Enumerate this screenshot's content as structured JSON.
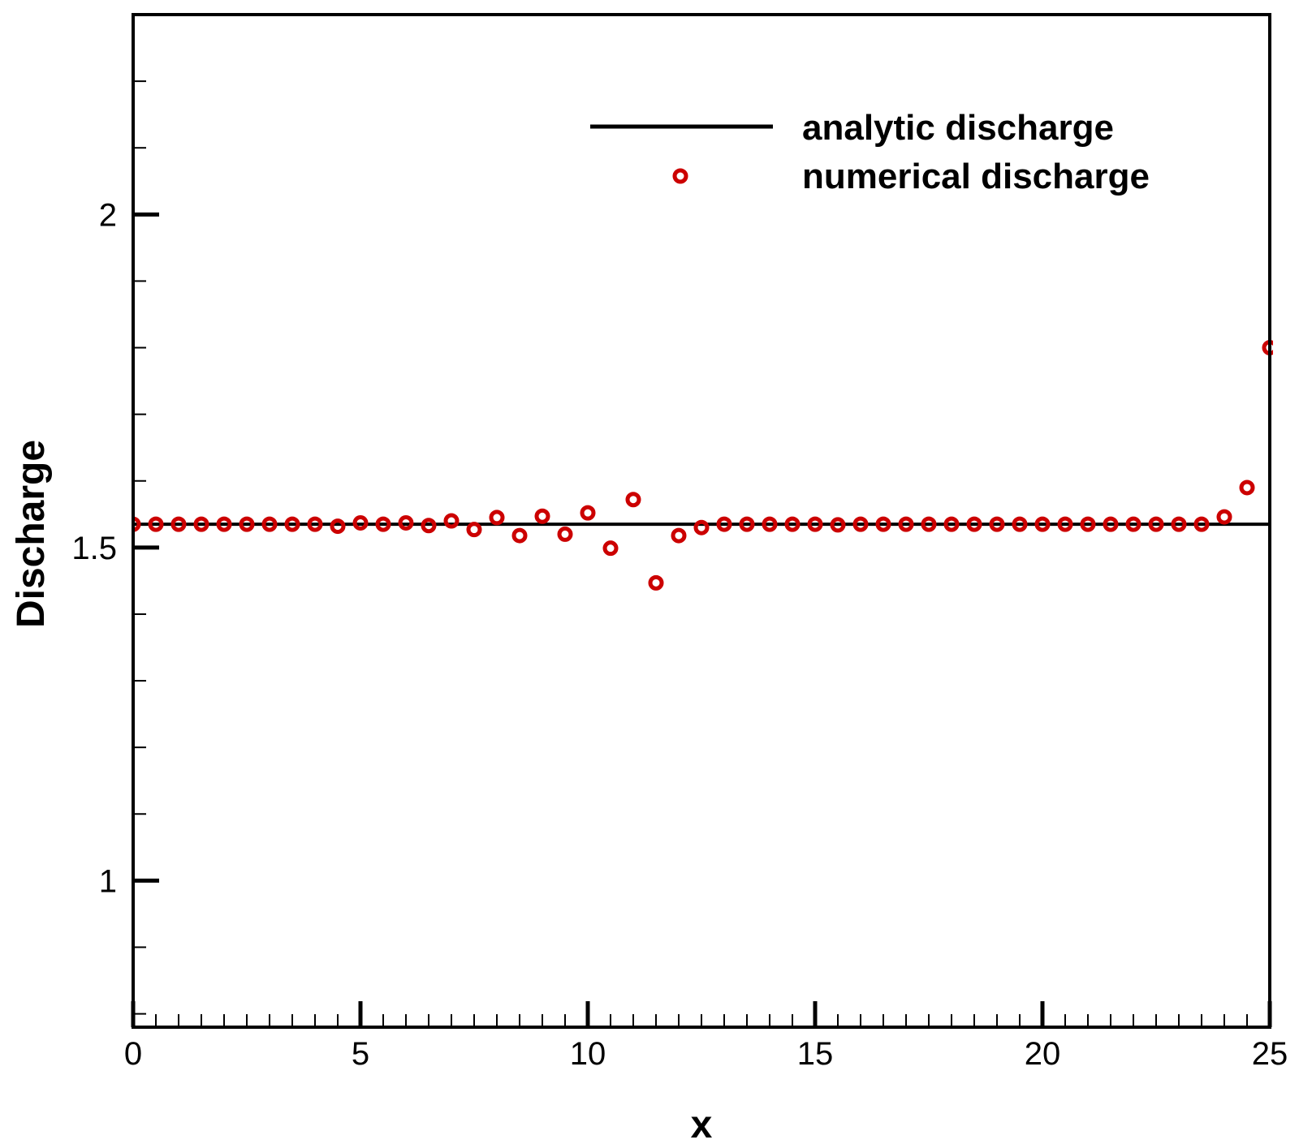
{
  "chart_data": {
    "type": "scatter",
    "xlabel": "x",
    "ylabel": "Discharge",
    "xlim": [
      0,
      25
    ],
    "ylim": [
      0.78,
      2.3
    ],
    "x_major_ticks": [
      0,
      5,
      10,
      15,
      20,
      25
    ],
    "x_tick_labels": [
      "0",
      "5",
      "10",
      "15",
      "20",
      "25"
    ],
    "x_minor_step": 0.5,
    "y_major_ticks": [
      1,
      1.5,
      2
    ],
    "y_tick_labels": [
      "1",
      "1.5",
      "2"
    ],
    "y_minor_step": 0.1,
    "grid": false,
    "legend_position": "top-right",
    "series": [
      {
        "name": "analytic discharge",
        "kind": "line",
        "color": "#000000",
        "x": [
          0,
          25
        ],
        "y": [
          1.535,
          1.535
        ]
      },
      {
        "name": "numerical discharge",
        "kind": "scatter",
        "marker": "open-circle",
        "color": "#cc0000",
        "x": [
          0,
          0.5,
          1,
          1.5,
          2,
          2.5,
          3,
          3.5,
          4,
          4.5,
          5,
          5.5,
          6,
          6.5,
          7,
          7.5,
          8,
          8.5,
          9,
          9.5,
          10,
          10.5,
          11,
          11.5,
          12,
          12.5,
          13,
          13.5,
          14,
          14.5,
          15,
          15.5,
          16,
          16.5,
          17,
          17.5,
          18,
          18.5,
          19,
          19.5,
          20,
          20.5,
          21,
          21.5,
          22,
          22.5,
          23,
          23.5,
          24,
          24.5,
          25
        ],
        "y": [
          1.535,
          1.535,
          1.535,
          1.535,
          1.535,
          1.535,
          1.535,
          1.535,
          1.535,
          1.532,
          1.537,
          1.535,
          1.537,
          1.533,
          1.54,
          1.527,
          1.545,
          1.518,
          1.547,
          1.52,
          1.552,
          1.499,
          1.572,
          1.447,
          1.518,
          1.53,
          1.535,
          1.535,
          1.535,
          1.535,
          1.535,
          1.534,
          1.535,
          1.535,
          1.535,
          1.535,
          1.535,
          1.535,
          1.535,
          1.535,
          1.535,
          1.535,
          1.535,
          1.535,
          1.535,
          1.535,
          1.535,
          1.535,
          1.546,
          1.59,
          1.8
        ]
      }
    ]
  }
}
